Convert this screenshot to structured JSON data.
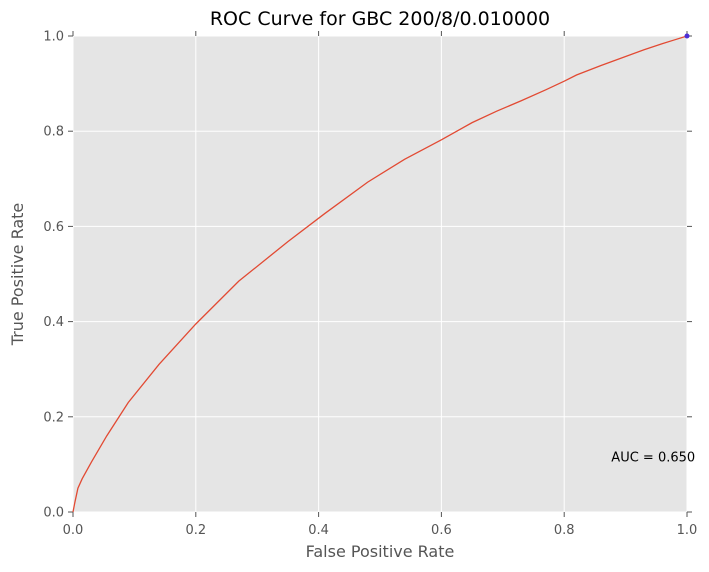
{
  "chart_data": {
    "type": "line",
    "title": "ROC Curve for GBC 200/8/0.010000",
    "xlabel": "False Positive Rate",
    "ylabel": "True Positive Rate",
    "xlim": [
      0.0,
      1.0
    ],
    "ylim": [
      0.0,
      1.0
    ],
    "xticks": [
      0.0,
      0.2,
      0.4,
      0.6,
      0.8,
      1.0
    ],
    "yticks": [
      0.0,
      0.2,
      0.4,
      0.6,
      0.8,
      1.0
    ],
    "xtick_labels": [
      "0.0",
      "0.2",
      "0.4",
      "0.6",
      "0.8",
      "1.0"
    ],
    "ytick_labels": [
      "0.0",
      "0.2",
      "0.4",
      "0.6",
      "0.8",
      "1.0"
    ],
    "grid": true,
    "legend": "none",
    "series": [
      {
        "color": "#e24a33",
        "x": [
          0.0,
          0.003,
          0.008,
          0.015,
          0.03,
          0.055,
          0.09,
          0.14,
          0.2,
          0.27,
          0.35,
          0.41,
          0.48,
          0.54,
          0.6,
          0.65,
          0.69,
          0.73,
          0.77,
          0.8,
          0.82,
          0.86,
          0.9,
          0.93,
          0.96,
          0.98,
          1.0
        ],
        "y": [
          0.0,
          0.02,
          0.05,
          0.07,
          0.105,
          0.16,
          0.23,
          0.31,
          0.395,
          0.485,
          0.568,
          0.627,
          0.693,
          0.741,
          0.782,
          0.818,
          0.842,
          0.864,
          0.887,
          0.905,
          0.918,
          0.938,
          0.957,
          0.971,
          0.984,
          0.992,
          1.0
        ]
      }
    ],
    "markers": [
      {
        "x": 1.0,
        "y": 1.0,
        "color": "#4b2fd6"
      }
    ],
    "annotations": [
      {
        "text": "AUC = 0.650",
        "x": 0.945,
        "y": 0.115
      }
    ]
  }
}
